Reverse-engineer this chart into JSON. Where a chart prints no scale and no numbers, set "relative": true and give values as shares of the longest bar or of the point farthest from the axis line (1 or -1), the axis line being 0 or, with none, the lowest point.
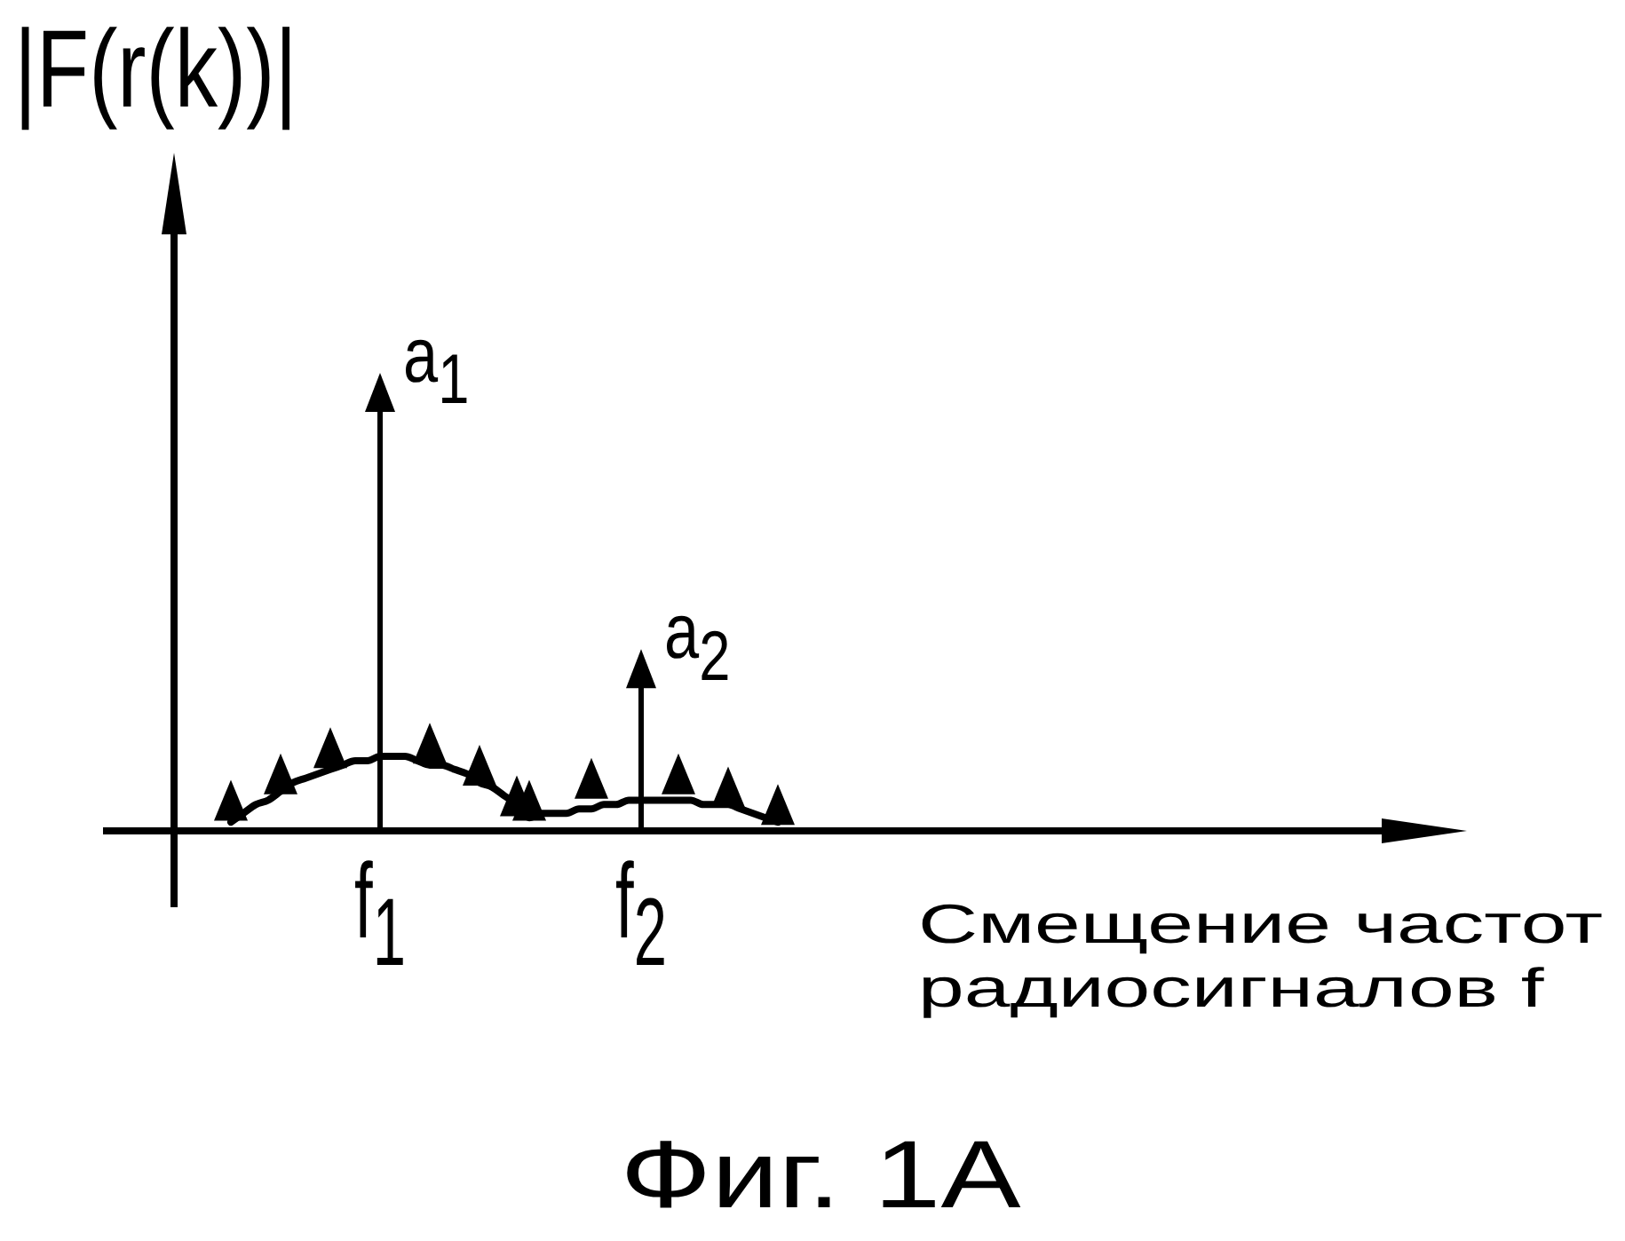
{
  "chart_data": {
    "type": "line",
    "relative": true,
    "ylabel": "|F(r(k))|",
    "xlabel": "Смещение частот радиосигналов f",
    "tick_labels": "x",
    "line_style": "solid",
    "categories": [
      null,
      null,
      null,
      null,
      null,
      null,
      null,
      null,
      null,
      null,
      null,
      null,
      "f$_{1}$",
      null,
      null,
      null,
      null,
      null,
      null,
      null,
      null,
      null,
      null,
      null,
      null,
      null,
      null,
      null,
      null,
      null,
      null,
      null,
      null,
      "f$_{2}$",
      null,
      null,
      null,
      null,
      null,
      null,
      null,
      null,
      null,
      null,
      null
    ],
    "series": [
      {
        "color": "#000000",
        "values": [
          0.02,
          0.04,
          0.06,
          0.07,
          0.09,
          0.11,
          0.12,
          0.13,
          0.14,
          0.15,
          0.16,
          0.16,
          0.17,
          0.17,
          0.17,
          0.16,
          0.15,
          0.15,
          0.14,
          0.13,
          0.11,
          0.1,
          0.08,
          0.06,
          0.03,
          0.04,
          0.04,
          0.04,
          0.05,
          0.05,
          0.06,
          0.06,
          0.07,
          0.07,
          0.07,
          0.07,
          0.07,
          0.07,
          0.06,
          0.06,
          0.06,
          0.05,
          0.04,
          0.03,
          0.02
        ]
      },
      {
        "type": "scatter",
        "color": "#000000",
        "marker": "triangle",
        "values": [
          0.07,
          null,
          null,
          null,
          0.13,
          null,
          null,
          null,
          0.19,
          null,
          null,
          null,
          null,
          null,
          null,
          null,
          0.2,
          null,
          null,
          null,
          0.15,
          null,
          null,
          0.08,
          0.07,
          null,
          null,
          null,
          null,
          0.12,
          null,
          null,
          null,
          null,
          null,
          null,
          0.13,
          null,
          null,
          null,
          0.1,
          null,
          null,
          null,
          0.06
        ]
      },
      {
        "type": "lollipop",
        "color": "#000000",
        "marker": "triangle",
        "values": [
          null,
          null,
          null,
          null,
          null,
          null,
          null,
          null,
          null,
          null,
          null,
          null,
          1,
          null,
          null,
          null,
          null,
          null,
          null,
          null,
          null,
          null,
          null,
          null,
          null,
          null,
          null,
          null,
          null,
          null,
          null,
          null,
          null,
          0.37,
          null,
          null,
          null,
          null,
          null,
          null,
          null,
          null,
          null,
          null,
          null
        ]
      }
    ],
    "annotations": [
      {
        "text": "a$_{1}$",
        "x": "f$_{1}$",
        "y": 1
      },
      {
        "text": "a$_{2}$",
        "x": "f$_{2}$",
        "y": 0.37
      },
      "Фиг. 1A"
    ]
  }
}
